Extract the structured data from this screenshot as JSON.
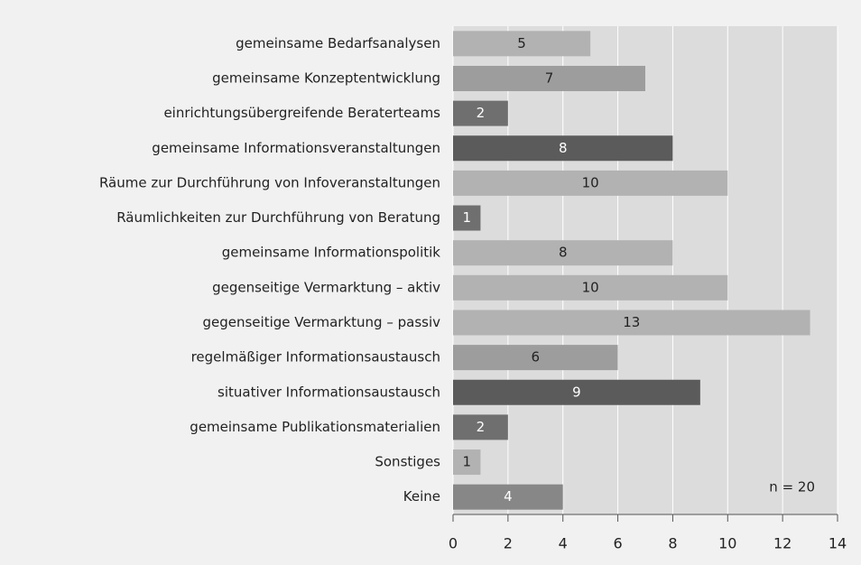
{
  "chart_data": {
    "type": "hbar",
    "categories": [
      "gemeinsame Bedarfsanalysen",
      "gemeinsame Konzeptentwicklung",
      "einrichtungsübergreifende Beraterteams",
      "gemeinsame Informationsveranstaltungen",
      "Räume zur Durchführung von Infoveranstaltungen",
      "Räumlichkeiten zur Durchführung von Beratung",
      "gemeinsame Informationspolitik",
      "gegenseitige Vermarktung – aktiv",
      "gegenseitige Vermarktung – passiv",
      "regelmäßiger Informationsaustausch",
      "situativer Informationsaustausch",
      "gemeinsame Publikationsmaterialien",
      "Sonstiges",
      "Keine"
    ],
    "values": [
      5,
      7,
      2,
      8,
      10,
      1,
      8,
      10,
      13,
      6,
      9,
      2,
      1,
      4
    ],
    "colors": [
      "#b2b2b2",
      "#9d9d9d",
      "#6f6f6f",
      "#5b5b5b",
      "#b2b2b2",
      "#6f6f6f",
      "#b2b2b2",
      "#b2b2b2",
      "#b2b2b2",
      "#9d9d9d",
      "#5b5b5b",
      "#6f6f6f",
      "#b2b2b2",
      "#878787"
    ],
    "xlim": [
      0,
      14
    ],
    "xticks": [
      0,
      2,
      4,
      6,
      8,
      10,
      12,
      14
    ],
    "grid": true,
    "annotation": "n = 20"
  }
}
